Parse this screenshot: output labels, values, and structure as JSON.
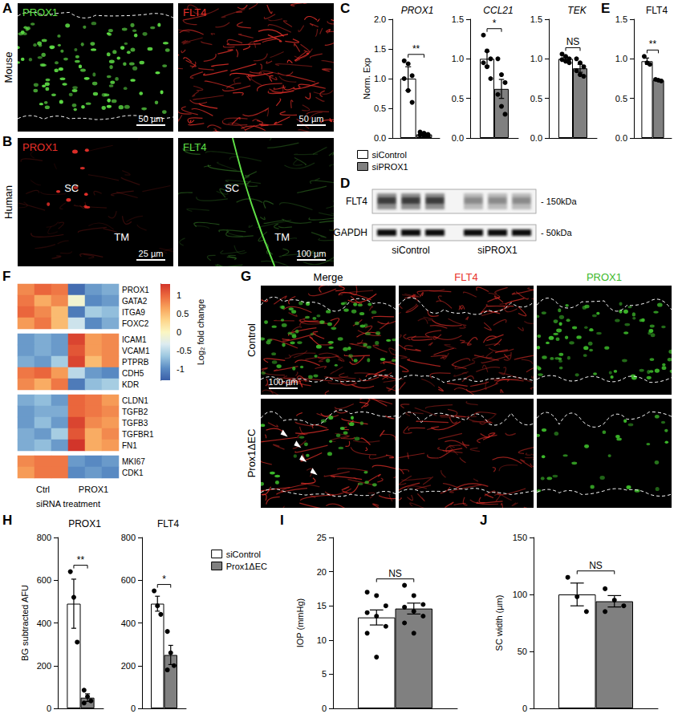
{
  "panel_letters": [
    "A",
    "B",
    "C",
    "D",
    "E",
    "F",
    "G",
    "H",
    "I",
    "J"
  ],
  "micrographs": [
    {
      "row_label": "Mouse",
      "tiles": [
        {
          "label": "PROX1",
          "color": "#5fe046",
          "scale_bar": "50 µm"
        },
        {
          "label": "FLT4",
          "color": "#e8302a",
          "scale_bar": "50 µm"
        }
      ]
    },
    {
      "row_label": "Human",
      "tiles": [
        {
          "label": "PROX1",
          "color": "#e8302a",
          "scale_bar": "25 µm",
          "annotations": [
            "SC",
            "TM"
          ]
        },
        {
          "label": "FLT4",
          "color": "#5fe046",
          "scale_bar": "100 µm",
          "annotations": [
            "SC",
            "TM"
          ]
        }
      ]
    }
  ],
  "micrograph_grid": {
    "columns": [
      {
        "label": "Merge",
        "color": "#000000"
      },
      {
        "label": "FLT4",
        "color": "#e8302a"
      },
      {
        "label": "PROX1",
        "color": "#3cb82a"
      }
    ],
    "rows": [
      "Control",
      "Prox1ΔEC"
    ],
    "scale_bar": "100 µm"
  },
  "blot": {
    "rows": [
      {
        "label": "FLT4",
        "size_marker": "- 150kDa"
      },
      {
        "label": "GAPDH",
        "size_marker": "- 50kDa"
      }
    ],
    "lanes": [
      {
        "label": "siControl",
        "n": 3
      },
      {
        "label": "siPROX1",
        "n": 3
      }
    ]
  },
  "chart_data": [
    {
      "type": "bar",
      "title": "PROX1",
      "ylabel": "Norm. Exp",
      "categories": [
        null
      ],
      "ylim": [
        0,
        2
      ],
      "yticks": [
        {
          "value": 0,
          "label": "0.0"
        },
        0.5,
        {
          "value": 1,
          "label": "1.0"
        },
        1.5,
        {
          "value": 2,
          "label": "2.0"
        }
      ],
      "significance": "**",
      "legend": "bottom",
      "series": [
        {
          "name": "siControl",
          "color": "#ffffff",
          "values": [
            1.0
          ],
          "error": [
            0.2
          ],
          "points": [
            [
              1.3,
              1.25,
              1.05,
              1.0,
              0.8,
              0.6
            ]
          ]
        },
        {
          "name": "siPROX1",
          "color": "#808080",
          "values": [
            0.06
          ],
          "error": [
            0.02
          ],
          "points": [
            [
              0.1,
              0.08,
              0.06,
              0.05,
              0.04,
              0.03
            ]
          ]
        }
      ]
    },
    {
      "type": "bar",
      "title": "CCL21",
      "categories": [
        null
      ],
      "ylim": [
        0,
        1.5
      ],
      "yticks": [
        {
          "value": 0,
          "label": "0.0"
        },
        0.5,
        {
          "value": 1,
          "label": "1.0"
        },
        1.5
      ],
      "significance": "*",
      "series": [
        {
          "name": "siControl",
          "color": "#ffffff",
          "values": [
            1.0
          ],
          "error": [
            0.09
          ],
          "points": [
            [
              1.3,
              1.1,
              1.0,
              0.95,
              0.9,
              0.75
            ]
          ]
        },
        {
          "name": "siPROX1",
          "color": "#808080",
          "values": [
            0.62
          ],
          "error": [
            0.12
          ],
          "points": [
            [
              1.0,
              0.8,
              0.7,
              0.55,
              0.4,
              0.3
            ]
          ]
        }
      ]
    },
    {
      "type": "bar",
      "title": "TEK",
      "categories": [
        null
      ],
      "ylim": [
        0,
        1.5
      ],
      "yticks": [
        {
          "value": 0,
          "label": "0.0"
        },
        0.5,
        {
          "value": 1,
          "label": "1.0"
        },
        1.5
      ],
      "significance": "NS",
      "series": [
        {
          "name": "siControl",
          "color": "#ffffff",
          "values": [
            1.0
          ],
          "error": [
            0.02
          ],
          "points": [
            [
              1.06,
              1.03,
              1.0,
              0.99,
              0.97,
              0.95
            ]
          ]
        },
        {
          "name": "siPROX1",
          "color": "#808080",
          "values": [
            0.88
          ],
          "error": [
            0.05
          ],
          "points": [
            [
              1.0,
              0.95,
              0.9,
              0.85,
              0.8,
              0.78
            ]
          ]
        }
      ]
    },
    {
      "type": "bar",
      "title": "FLT4",
      "categories": [
        null
      ],
      "ylim": [
        0,
        1.5
      ],
      "yticks": [
        {
          "value": 0,
          "label": "0.0"
        },
        0.5,
        {
          "value": 1,
          "label": "1.0"
        },
        1.5
      ],
      "significance": "**",
      "series": [
        {
          "name": "siControl",
          "color": "#ffffff",
          "values": [
            0.97
          ],
          "error": [
            0.04
          ],
          "points": [
            [
              1.03,
              0.95,
              0.93
            ]
          ]
        },
        {
          "name": "siPROX1",
          "color": "#808080",
          "values": [
            0.73
          ],
          "error": [
            0.01
          ],
          "points": [
            [
              0.74,
              0.73,
              0.72
            ]
          ]
        }
      ]
    },
    {
      "type": "bar",
      "title": "PROX1",
      "ylabel": "BG subtracted AFU",
      "categories": [
        null
      ],
      "ylim": [
        0,
        800
      ],
      "yticks": [
        0,
        200,
        400,
        600,
        800
      ],
      "significance": "**",
      "series": [
        {
          "name": "siControl",
          "color": "#ffffff",
          "values": [
            490
          ],
          "error": [
            115
          ],
          "points": [
            [
              640,
              520,
              310
            ]
          ]
        },
        {
          "name": "Prox1ΔEC",
          "color": "#808080",
          "values": [
            50
          ],
          "error": [
            18
          ],
          "points": [
            [
              85,
              55,
              35,
              25
            ]
          ]
        }
      ]
    },
    {
      "type": "bar",
      "title": "FLT4",
      "categories": [
        null
      ],
      "ylim": [
        0,
        800
      ],
      "yticks": [
        0,
        200,
        400,
        600,
        800
      ],
      "significance": "*",
      "legend": "right",
      "series": [
        {
          "name": "siControl",
          "color": "#ffffff",
          "values": [
            490
          ],
          "error": [
            35
          ],
          "points": [
            [
              550,
              480,
              440
            ]
          ]
        },
        {
          "name": "Prox1ΔEC",
          "color": "#808080",
          "values": [
            250
          ],
          "error": [
            45
          ],
          "points": [
            [
              360,
              260,
              200,
              180
            ]
          ]
        }
      ]
    },
    {
      "type": "bar",
      "ylabel": "IOP (mmHg)",
      "categories": [
        null
      ],
      "ylim": [
        0,
        25
      ],
      "yticks": [
        0,
        5,
        10,
        15,
        20,
        25
      ],
      "significance": "NS",
      "series": [
        {
          "name": "siControl",
          "color": "#ffffff",
          "values": [
            13.3
          ],
          "error": [
            1.1
          ],
          "points": [
            [
              17,
              16.5,
              15,
              14,
              13.5,
              12,
              11,
              7.5
            ]
          ]
        },
        {
          "name": "Prox1ΔEC",
          "color": "#808080",
          "values": [
            14.6
          ],
          "error": [
            0.8
          ],
          "points": [
            [
              18,
              16.5,
              15.2,
              14.8,
              14.2,
              13.5,
              12.5,
              11
            ]
          ]
        }
      ]
    },
    {
      "type": "bar",
      "ylabel": "SC width (µm)",
      "categories": [
        null
      ],
      "ylim": [
        0,
        150
      ],
      "yticks": [
        0,
        50,
        100,
        150
      ],
      "significance": "NS",
      "series": [
        {
          "name": "siControl",
          "color": "#ffffff",
          "values": [
            100
          ],
          "error": [
            10
          ],
          "points": [
            [
              115,
              98,
              85
            ]
          ]
        },
        {
          "name": "Prox1ΔEC",
          "color": "#808080",
          "values": [
            94
          ],
          "error": [
            5
          ],
          "points": [
            [
              105,
              95,
              90,
              85
            ]
          ]
        }
      ]
    },
    {
      "type": "heatmap",
      "xlabel": "siRNA treatment",
      "column_groups": [
        {
          "label": "Ctrl",
          "n": 3
        },
        {
          "label": "PROX1",
          "n": 3
        }
      ],
      "row_groups": [
        {
          "rows": [
            "PROX1",
            "GATA2",
            "ITGA9",
            "FOXC2"
          ],
          "values": [
            [
              0.8,
              1.0,
              0.9,
              -1.2,
              -0.9,
              -0.8
            ],
            [
              0.9,
              0.6,
              0.8,
              -0.1,
              -1.0,
              -0.9
            ],
            [
              1.0,
              0.8,
              0.5,
              -1.1,
              -0.6,
              -0.7
            ],
            [
              0.7,
              0.9,
              0.5,
              -0.4,
              -1.0,
              -0.8
            ]
          ]
        },
        {
          "rows": [
            "ICAM1",
            "VCAM1",
            "PTPRB",
            "CDH5",
            "KDR"
          ],
          "values": [
            [
              -0.9,
              -0.8,
              -0.9,
              1.2,
              0.7,
              0.8
            ],
            [
              -0.9,
              -0.8,
              -0.9,
              1.1,
              0.7,
              0.8
            ],
            [
              -0.8,
              -0.9,
              -0.6,
              1.2,
              0.5,
              0.8
            ],
            [
              0.9,
              1.0,
              0.7,
              -0.5,
              -0.9,
              -1.0
            ],
            [
              0.8,
              0.6,
              0.9,
              -1.1,
              -0.7,
              -0.6
            ]
          ]
        },
        {
          "rows": [
            "CLDN1",
            "TGFB2",
            "TGFB3",
            "TGFBR1",
            "FN1"
          ],
          "values": [
            [
              -0.8,
              -0.7,
              -0.9,
              1.0,
              0.9,
              0.7
            ],
            [
              -0.9,
              -0.8,
              -0.8,
              1.0,
              0.9,
              0.8
            ],
            [
              -0.9,
              -0.7,
              -0.9,
              1.2,
              0.8,
              0.7
            ],
            [
              -0.8,
              -0.9,
              -0.6,
              1.1,
              0.6,
              0.8
            ],
            [
              -0.8,
              -0.7,
              -0.9,
              1.3,
              0.6,
              0.7
            ]
          ]
        },
        {
          "rows": [
            "MKI67",
            "CDK1"
          ],
          "values": [
            [
              0.8,
              0.9,
              0.9,
              -0.9,
              -1.0,
              -0.9
            ],
            [
              0.7,
              0.9,
              0.9,
              -1.0,
              -0.9,
              -1.0
            ]
          ]
        }
      ],
      "colorbar": {
        "title": "Log₂ fold change",
        "range": [
          -1.3,
          1.3
        ],
        "ticks": [
          -1,
          -0.5,
          0,
          0.5,
          1
        ]
      },
      "colormap": [
        "#3a5fa8",
        "#5b8cc4",
        "#9cc7e0",
        "#dcebf0",
        "#fbf6c2",
        "#fdd58a",
        "#f8a45c",
        "#ec6a3e",
        "#d2352a"
      ]
    }
  ]
}
